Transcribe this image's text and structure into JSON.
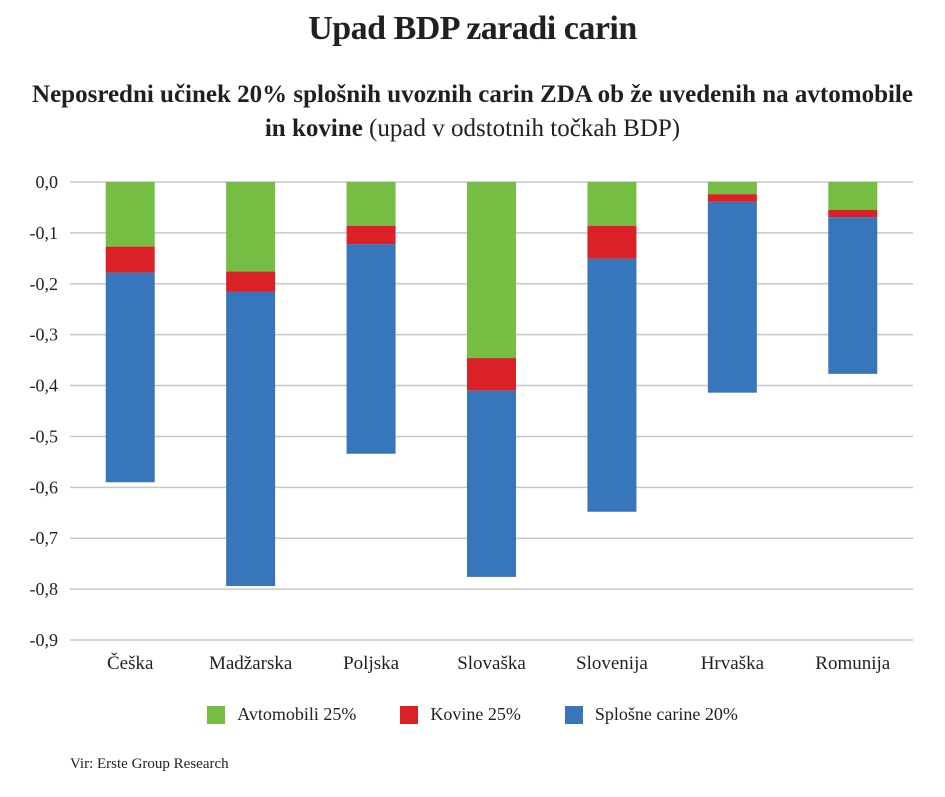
{
  "title": "Upad BDP zaradi carin",
  "subtitle": {
    "bold": "Neposredni učinek 20% splošnih uvoznih carin ZDA ob že uvedenih na avtomobile in kovine",
    "regular": "(upad v odstotnih točkah BDP)"
  },
  "source": "Vir: Erste Group Research",
  "chart_data": {
    "type": "bar",
    "stacked": true,
    "title": "Upad BDP zaradi carin",
    "subtitle": "Neposredni učinek 20% splošnih uvoznih carin ZDA ob že uvedenih na avtomobile in kovine (upad v odstotnih točkah BDP)",
    "xlabel": "",
    "ylabel": "",
    "categories": [
      "Češka",
      "Madžarska",
      "Poljska",
      "Slovaška",
      "Slovenija",
      "Hrvaška",
      "Romunija"
    ],
    "series": [
      {
        "name": "Avtomobili 25%",
        "color": "#76bd43",
        "values": [
          -0.127,
          -0.176,
          -0.086,
          -0.346,
          -0.086,
          -0.024,
          -0.055
        ]
      },
      {
        "name": "Kovine 25%",
        "color": "#da2128",
        "values": [
          -0.051,
          -0.04,
          -0.036,
          -0.064,
          -0.065,
          -0.015,
          -0.014
        ]
      },
      {
        "name": "Splošne carine 20%",
        "color": "#3776bb",
        "values": [
          -0.412,
          -0.578,
          -0.412,
          -0.366,
          -0.497,
          -0.375,
          -0.308
        ]
      }
    ],
    "ylim": [
      -0.9,
      0.0
    ],
    "yticks": [
      "0,0",
      "-0,1",
      "-0,2",
      "-0,3",
      "-0,4",
      "-0,5",
      "-0,6",
      "-0,7",
      "-0,8",
      "-0,9"
    ],
    "ytick_values": [
      0,
      -0.1,
      -0.2,
      -0.3,
      -0.4,
      -0.5,
      -0.6,
      -0.7,
      -0.8,
      -0.9
    ],
    "grid": true,
    "legend_position": "bottom"
  }
}
